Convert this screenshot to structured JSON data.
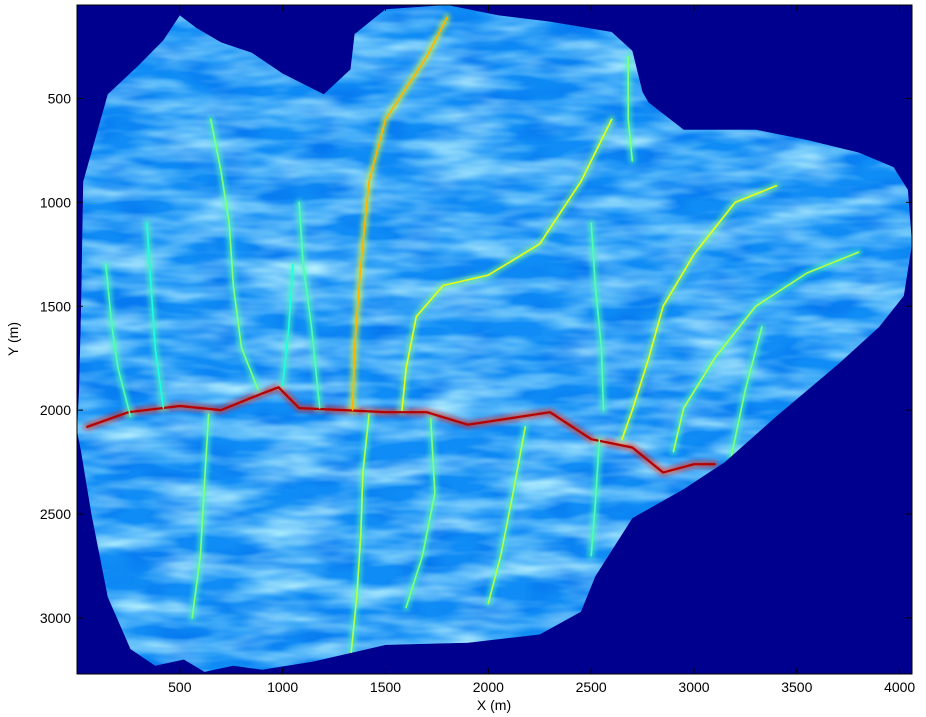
{
  "chart_data": {
    "type": "heatmap",
    "title": "",
    "xlabel": "X (m)",
    "ylabel": "Y (m)",
    "xlim": [
      0,
      4060
    ],
    "ylim": [
      3270,
      50
    ],
    "y_axis_reversed": true,
    "grid": false,
    "colormap": "jet",
    "background_color": "#00008F",
    "x_ticks": [
      500,
      1000,
      1500,
      2000,
      2500,
      3000,
      3500,
      4000
    ],
    "x_tick_labels": [
      "500",
      "1000",
      "1500",
      "2000",
      "2500",
      "3000",
      "3500",
      "4000"
    ],
    "y_ticks": [
      500,
      1000,
      1500,
      2000,
      2500,
      3000
    ],
    "y_tick_labels": [
      "500",
      "1000",
      "1500",
      "2000",
      "2500",
      "3000"
    ],
    "domain_outline": [
      [
        0,
        2100
      ],
      [
        20,
        2200
      ],
      [
        70,
        2500
      ],
      [
        150,
        2900
      ],
      [
        260,
        3150
      ],
      [
        380,
        3230
      ],
      [
        520,
        3200
      ],
      [
        620,
        3260
      ],
      [
        760,
        3230
      ],
      [
        900,
        3250
      ],
      [
        1150,
        3210
      ],
      [
        1500,
        3130
      ],
      [
        1900,
        3120
      ],
      [
        2250,
        3080
      ],
      [
        2450,
        2970
      ],
      [
        2520,
        2800
      ],
      [
        2700,
        2520
      ],
      [
        2950,
        2380
      ],
      [
        3150,
        2250
      ],
      [
        3400,
        2030
      ],
      [
        3700,
        1780
      ],
      [
        3900,
        1600
      ],
      [
        4020,
        1450
      ],
      [
        4060,
        1200
      ],
      [
        4040,
        940
      ],
      [
        3970,
        830
      ],
      [
        3800,
        760
      ],
      [
        3550,
        700
      ],
      [
        3300,
        650
      ],
      [
        3100,
        650
      ],
      [
        2950,
        650
      ],
      [
        2780,
        520
      ],
      [
        2750,
        470
      ],
      [
        2700,
        270
      ],
      [
        2600,
        180
      ],
      [
        2300,
        130
      ],
      [
        2050,
        100
      ],
      [
        1800,
        50
      ],
      [
        1500,
        70
      ],
      [
        1350,
        190
      ],
      [
        1330,
        360
      ],
      [
        1200,
        480
      ],
      [
        1000,
        380
      ],
      [
        850,
        280
      ],
      [
        700,
        230
      ],
      [
        580,
        160
      ],
      [
        500,
        100
      ],
      [
        420,
        220
      ],
      [
        300,
        340
      ],
      [
        150,
        480
      ],
      [
        30,
        900
      ],
      [
        20,
        1500
      ],
      [
        10,
        1900
      ]
    ],
    "channels": [
      {
        "level": 0.95,
        "points": [
          [
            50,
            2080
          ],
          [
            250,
            2010
          ],
          [
            500,
            1980
          ],
          [
            700,
            2000
          ],
          [
            900,
            1920
          ],
          [
            980,
            1890
          ],
          [
            1080,
            1990
          ],
          [
            1300,
            2000
          ],
          [
            1500,
            2010
          ],
          [
            1700,
            2010
          ],
          [
            1900,
            2070
          ],
          [
            2100,
            2040
          ],
          [
            2300,
            2010
          ],
          [
            2500,
            2140
          ],
          [
            2700,
            2180
          ],
          [
            2850,
            2300
          ],
          [
            3000,
            2260
          ],
          [
            3100,
            2260
          ]
        ]
      },
      {
        "level": 0.7,
        "points": [
          [
            1800,
            110
          ],
          [
            1700,
            300
          ],
          [
            1600,
            450
          ],
          [
            1500,
            600
          ],
          [
            1420,
            900
          ],
          [
            1380,
            1300
          ],
          [
            1350,
            1700
          ],
          [
            1340,
            2000
          ]
        ]
      },
      {
        "level": 0.6,
        "points": [
          [
            2600,
            600
          ],
          [
            2450,
            900
          ],
          [
            2250,
            1200
          ],
          [
            2000,
            1350
          ],
          [
            1780,
            1400
          ],
          [
            1650,
            1550
          ],
          [
            1600,
            1800
          ],
          [
            1580,
            2000
          ]
        ]
      },
      {
        "level": 0.6,
        "points": [
          [
            3400,
            920
          ],
          [
            3200,
            1000
          ],
          [
            3000,
            1250
          ],
          [
            2850,
            1500
          ],
          [
            2780,
            1750
          ],
          [
            2700,
            2000
          ],
          [
            2650,
            2140
          ]
        ]
      },
      {
        "level": 0.55,
        "points": [
          [
            3800,
            1240
          ],
          [
            3550,
            1340
          ],
          [
            3300,
            1500
          ],
          [
            3100,
            1750
          ],
          [
            2950,
            1990
          ],
          [
            2900,
            2200
          ]
        ]
      },
      {
        "level": 0.55,
        "points": [
          [
            1420,
            2020
          ],
          [
            1390,
            2300
          ],
          [
            1380,
            2600
          ],
          [
            1360,
            2900
          ],
          [
            1330,
            3200
          ]
        ]
      },
      {
        "level": 0.55,
        "points": [
          [
            2180,
            2080
          ],
          [
            2120,
            2400
          ],
          [
            2060,
            2700
          ],
          [
            2000,
            2930
          ]
        ]
      },
      {
        "level": 0.5,
        "points": [
          [
            640,
            2020
          ],
          [
            620,
            2350
          ],
          [
            600,
            2700
          ],
          [
            560,
            3000
          ]
        ]
      },
      {
        "level": 0.5,
        "points": [
          [
            880,
            1900
          ],
          [
            800,
            1700
          ],
          [
            760,
            1400
          ],
          [
            740,
            1100
          ],
          [
            700,
            850
          ],
          [
            650,
            600
          ]
        ]
      },
      {
        "level": 0.45,
        "points": [
          [
            260,
            2030
          ],
          [
            200,
            1800
          ],
          [
            170,
            1600
          ],
          [
            140,
            1300
          ]
        ]
      },
      {
        "level": 0.5,
        "points": [
          [
            1720,
            2040
          ],
          [
            1740,
            2400
          ],
          [
            1680,
            2700
          ],
          [
            1600,
            2950
          ]
        ]
      },
      {
        "level": 0.45,
        "points": [
          [
            2540,
            2140
          ],
          [
            2520,
            2450
          ],
          [
            2500,
            2700
          ]
        ]
      },
      {
        "level": 0.5,
        "points": [
          [
            2700,
            800
          ],
          [
            2680,
            600
          ],
          [
            2680,
            300
          ]
        ]
      },
      {
        "level": 0.45,
        "points": [
          [
            1180,
            1990
          ],
          [
            1140,
            1600
          ],
          [
            1100,
            1300
          ],
          [
            1080,
            1000
          ]
        ]
      },
      {
        "level": 0.45,
        "points": [
          [
            2560,
            2000
          ],
          [
            2550,
            1700
          ],
          [
            2520,
            1400
          ],
          [
            2500,
            1100
          ]
        ]
      },
      {
        "level": 0.5,
        "points": [
          [
            3180,
            2230
          ],
          [
            3250,
            1900
          ],
          [
            3330,
            1600
          ]
        ]
      },
      {
        "level": 0.4,
        "points": [
          [
            420,
            1990
          ],
          [
            380,
            1700
          ],
          [
            360,
            1400
          ],
          [
            340,
            1100
          ]
        ]
      },
      {
        "level": 0.4,
        "points": [
          [
            1000,
            1880
          ],
          [
            1030,
            1600
          ],
          [
            1050,
            1300
          ]
        ]
      }
    ]
  }
}
